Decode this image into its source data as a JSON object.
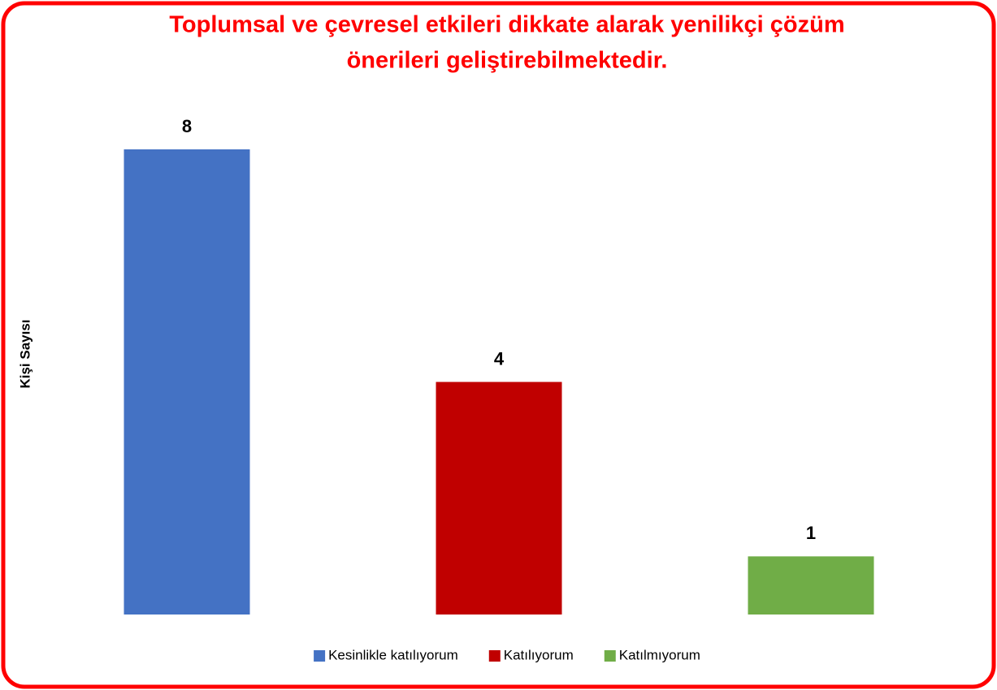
{
  "chart_data": {
    "type": "bar",
    "title": [
      "Toplumsal ve çevresel etkileri dikkate alarak yenilikçi çözüm",
      "önerileri geliştirebilmektedir."
    ],
    "y_label": "Kişi Sayısı",
    "series": [
      {
        "name": "Kesinlikle katılıyorum",
        "color": "#4472c4",
        "values": [
          8
        ]
      },
      {
        "name": "Katılıyorum",
        "color": "#c00000",
        "values": [
          4
        ]
      },
      {
        "name": "Katılmıyorum",
        "color": "#70ad47",
        "values": [
          1
        ]
      }
    ],
    "legend": "bottom"
  }
}
